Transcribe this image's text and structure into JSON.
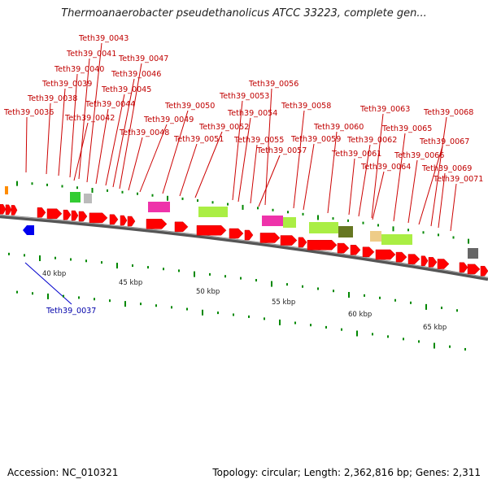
{
  "title": "Thermoanaerobacter pseudethanolicus ATCC 33223, complete gen...",
  "footer": {
    "accession": "Accession: NC_010321",
    "summary": "Topology: circular; Length: 2,362,816 bp; Genes: 2,311"
  },
  "colors": {
    "forward_gene": "#ff0000",
    "reverse_gene": "#0000ff",
    "label_forward": "#c00000",
    "label_reverse": "#0000aa",
    "backbone": "#888888",
    "tick": "#007700"
  },
  "tick_labels": [
    "40 kbp",
    "45 kbp",
    "50 kbp",
    "55 kbp",
    "60 kbp",
    "65 kbp"
  ],
  "reverse_gene_labels": [
    "Teth39_0037"
  ],
  "forward_gene_labels": [
    "Teth39_0036",
    "Teth39_0038",
    "Teth39_0039",
    "Teth39_0040",
    "Teth39_0041",
    "Teth39_0042",
    "Teth39_0043",
    "Teth39_0044",
    "Teth39_0045",
    "Teth39_0046",
    "Teth39_0047",
    "Teth39_0048",
    "Teth39_0049",
    "Teth39_0050",
    "Teth39_0051",
    "Teth39_0052",
    "Teth39_0053",
    "Teth39_0054",
    "Teth39_0055",
    "Teth39_0056",
    "Teth39_0057",
    "Teth39_0058",
    "Teth39_0059",
    "Teth39_0060",
    "Teth39_0061",
    "Teth39_0062",
    "Teth39_0063",
    "Teth39_0064",
    "Teth39_0065",
    "Teth39_0066",
    "Teth39_0067",
    "Teth39_0068",
    "Teth39_0069",
    "Teth39_0071"
  ]
}
